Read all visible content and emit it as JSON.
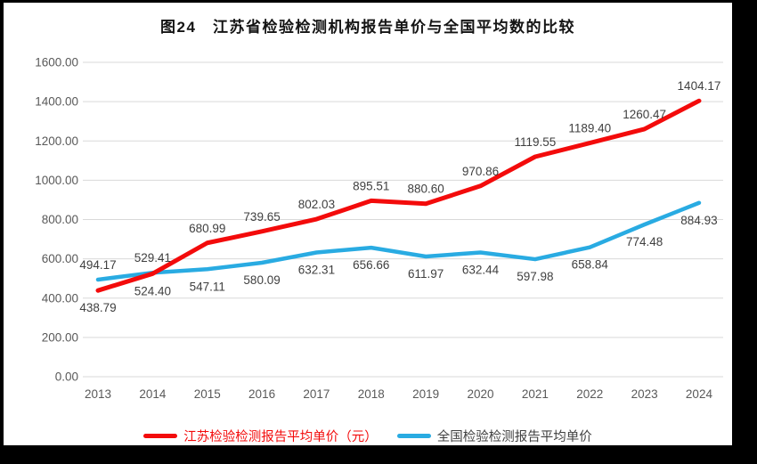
{
  "title": "图24　江苏省检验检测机构报告单价与全国平均数的比较",
  "colors": {
    "background": "#000000",
    "panel": "#ffffff",
    "grid": "#d9d9d9",
    "axis_text": "#595959",
    "data_label_text": "#3f3f3f",
    "series_red": "#f30b0b",
    "series_blue": "#29abe2"
  },
  "chart_data": {
    "type": "line",
    "title": "图24　江苏省检验检测机构报告单价与全国平均数的比较",
    "categories": [
      "2013",
      "2014",
      "2015",
      "2016",
      "2017",
      "2018",
      "2019",
      "2020",
      "2021",
      "2022",
      "2023",
      "2024"
    ],
    "series": [
      {
        "name": "江苏检验检测报告平均单价（元）",
        "color": "#f30b0b",
        "legend_text_color": "#f30b0b",
        "stroke_width": 5,
        "values": [
          438.79,
          524.4,
          680.99,
          739.65,
          802.03,
          895.51,
          880.6,
          970.86,
          1119.55,
          1189.4,
          1260.47,
          1404.17
        ],
        "label_side": [
          "below",
          "below",
          "above",
          "above",
          "above",
          "above",
          "above",
          "above",
          "above",
          "above",
          "above",
          "above"
        ]
      },
      {
        "name": "全国检验检测报告平均单价",
        "color": "#29abe2",
        "legend_text_color": "#404040",
        "stroke_width": 4.5,
        "values": [
          494.17,
          529.41,
          547.11,
          580.09,
          632.31,
          656.66,
          611.97,
          632.44,
          597.98,
          658.84,
          774.48,
          884.93
        ],
        "label_side": [
          "above",
          "above",
          "below",
          "below",
          "below",
          "below",
          "below",
          "below",
          "below",
          "below",
          "below",
          "below"
        ]
      }
    ],
    "xlabel": "",
    "ylabel": "",
    "ylim": [
      0,
      1600
    ],
    "ytick_step": 200,
    "ytick_labels": [
      "0.00",
      "200.00",
      "400.00",
      "600.00",
      "800.00",
      "1000.00",
      "1200.00",
      "1400.00",
      "1600.00"
    ],
    "grid": true,
    "legend_position": "bottom",
    "data_labels_format": "2dp"
  }
}
